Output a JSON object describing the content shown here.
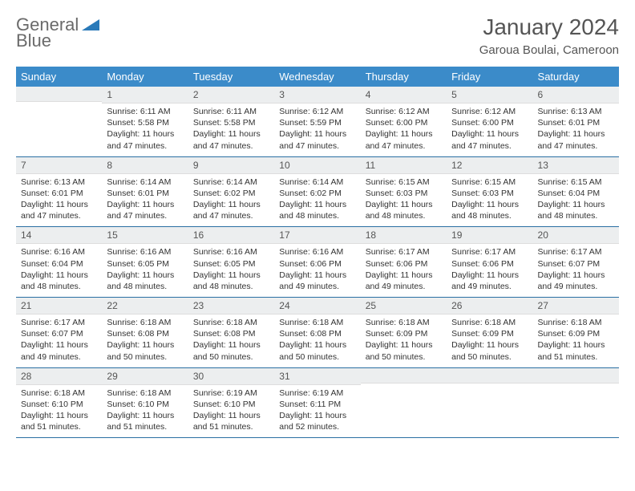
{
  "logo": {
    "text_gray": "General",
    "text_blue": "Blue"
  },
  "header": {
    "month_title": "January 2024",
    "location": "Garoua Boulai, Cameroon"
  },
  "colors": {
    "header_bg": "#3b8bc9",
    "header_text": "#ffffff",
    "daynum_bg": "#eceeef",
    "row_border": "#2a6fa3",
    "logo_gray": "#6a6a6a",
    "logo_blue": "#2a7ab9"
  },
  "day_headers": [
    "Sunday",
    "Monday",
    "Tuesday",
    "Wednesday",
    "Thursday",
    "Friday",
    "Saturday"
  ],
  "weeks": [
    [
      {
        "n": "",
        "sr": "",
        "ss": "",
        "dl": ""
      },
      {
        "n": "1",
        "sr": "Sunrise: 6:11 AM",
        "ss": "Sunset: 5:58 PM",
        "dl": "Daylight: 11 hours and 47 minutes."
      },
      {
        "n": "2",
        "sr": "Sunrise: 6:11 AM",
        "ss": "Sunset: 5:58 PM",
        "dl": "Daylight: 11 hours and 47 minutes."
      },
      {
        "n": "3",
        "sr": "Sunrise: 6:12 AM",
        "ss": "Sunset: 5:59 PM",
        "dl": "Daylight: 11 hours and 47 minutes."
      },
      {
        "n": "4",
        "sr": "Sunrise: 6:12 AM",
        "ss": "Sunset: 6:00 PM",
        "dl": "Daylight: 11 hours and 47 minutes."
      },
      {
        "n": "5",
        "sr": "Sunrise: 6:12 AM",
        "ss": "Sunset: 6:00 PM",
        "dl": "Daylight: 11 hours and 47 minutes."
      },
      {
        "n": "6",
        "sr": "Sunrise: 6:13 AM",
        "ss": "Sunset: 6:01 PM",
        "dl": "Daylight: 11 hours and 47 minutes."
      }
    ],
    [
      {
        "n": "7",
        "sr": "Sunrise: 6:13 AM",
        "ss": "Sunset: 6:01 PM",
        "dl": "Daylight: 11 hours and 47 minutes."
      },
      {
        "n": "8",
        "sr": "Sunrise: 6:14 AM",
        "ss": "Sunset: 6:01 PM",
        "dl": "Daylight: 11 hours and 47 minutes."
      },
      {
        "n": "9",
        "sr": "Sunrise: 6:14 AM",
        "ss": "Sunset: 6:02 PM",
        "dl": "Daylight: 11 hours and 47 minutes."
      },
      {
        "n": "10",
        "sr": "Sunrise: 6:14 AM",
        "ss": "Sunset: 6:02 PM",
        "dl": "Daylight: 11 hours and 48 minutes."
      },
      {
        "n": "11",
        "sr": "Sunrise: 6:15 AM",
        "ss": "Sunset: 6:03 PM",
        "dl": "Daylight: 11 hours and 48 minutes."
      },
      {
        "n": "12",
        "sr": "Sunrise: 6:15 AM",
        "ss": "Sunset: 6:03 PM",
        "dl": "Daylight: 11 hours and 48 minutes."
      },
      {
        "n": "13",
        "sr": "Sunrise: 6:15 AM",
        "ss": "Sunset: 6:04 PM",
        "dl": "Daylight: 11 hours and 48 minutes."
      }
    ],
    [
      {
        "n": "14",
        "sr": "Sunrise: 6:16 AM",
        "ss": "Sunset: 6:04 PM",
        "dl": "Daylight: 11 hours and 48 minutes."
      },
      {
        "n": "15",
        "sr": "Sunrise: 6:16 AM",
        "ss": "Sunset: 6:05 PM",
        "dl": "Daylight: 11 hours and 48 minutes."
      },
      {
        "n": "16",
        "sr": "Sunrise: 6:16 AM",
        "ss": "Sunset: 6:05 PM",
        "dl": "Daylight: 11 hours and 48 minutes."
      },
      {
        "n": "17",
        "sr": "Sunrise: 6:16 AM",
        "ss": "Sunset: 6:06 PM",
        "dl": "Daylight: 11 hours and 49 minutes."
      },
      {
        "n": "18",
        "sr": "Sunrise: 6:17 AM",
        "ss": "Sunset: 6:06 PM",
        "dl": "Daylight: 11 hours and 49 minutes."
      },
      {
        "n": "19",
        "sr": "Sunrise: 6:17 AM",
        "ss": "Sunset: 6:06 PM",
        "dl": "Daylight: 11 hours and 49 minutes."
      },
      {
        "n": "20",
        "sr": "Sunrise: 6:17 AM",
        "ss": "Sunset: 6:07 PM",
        "dl": "Daylight: 11 hours and 49 minutes."
      }
    ],
    [
      {
        "n": "21",
        "sr": "Sunrise: 6:17 AM",
        "ss": "Sunset: 6:07 PM",
        "dl": "Daylight: 11 hours and 49 minutes."
      },
      {
        "n": "22",
        "sr": "Sunrise: 6:18 AM",
        "ss": "Sunset: 6:08 PM",
        "dl": "Daylight: 11 hours and 50 minutes."
      },
      {
        "n": "23",
        "sr": "Sunrise: 6:18 AM",
        "ss": "Sunset: 6:08 PM",
        "dl": "Daylight: 11 hours and 50 minutes."
      },
      {
        "n": "24",
        "sr": "Sunrise: 6:18 AM",
        "ss": "Sunset: 6:08 PM",
        "dl": "Daylight: 11 hours and 50 minutes."
      },
      {
        "n": "25",
        "sr": "Sunrise: 6:18 AM",
        "ss": "Sunset: 6:09 PM",
        "dl": "Daylight: 11 hours and 50 minutes."
      },
      {
        "n": "26",
        "sr": "Sunrise: 6:18 AM",
        "ss": "Sunset: 6:09 PM",
        "dl": "Daylight: 11 hours and 50 minutes."
      },
      {
        "n": "27",
        "sr": "Sunrise: 6:18 AM",
        "ss": "Sunset: 6:09 PM",
        "dl": "Daylight: 11 hours and 51 minutes."
      }
    ],
    [
      {
        "n": "28",
        "sr": "Sunrise: 6:18 AM",
        "ss": "Sunset: 6:10 PM",
        "dl": "Daylight: 11 hours and 51 minutes."
      },
      {
        "n": "29",
        "sr": "Sunrise: 6:18 AM",
        "ss": "Sunset: 6:10 PM",
        "dl": "Daylight: 11 hours and 51 minutes."
      },
      {
        "n": "30",
        "sr": "Sunrise: 6:19 AM",
        "ss": "Sunset: 6:10 PM",
        "dl": "Daylight: 11 hours and 51 minutes."
      },
      {
        "n": "31",
        "sr": "Sunrise: 6:19 AM",
        "ss": "Sunset: 6:11 PM",
        "dl": "Daylight: 11 hours and 52 minutes."
      },
      {
        "n": "",
        "sr": "",
        "ss": "",
        "dl": ""
      },
      {
        "n": "",
        "sr": "",
        "ss": "",
        "dl": ""
      },
      {
        "n": "",
        "sr": "",
        "ss": "",
        "dl": ""
      }
    ]
  ]
}
